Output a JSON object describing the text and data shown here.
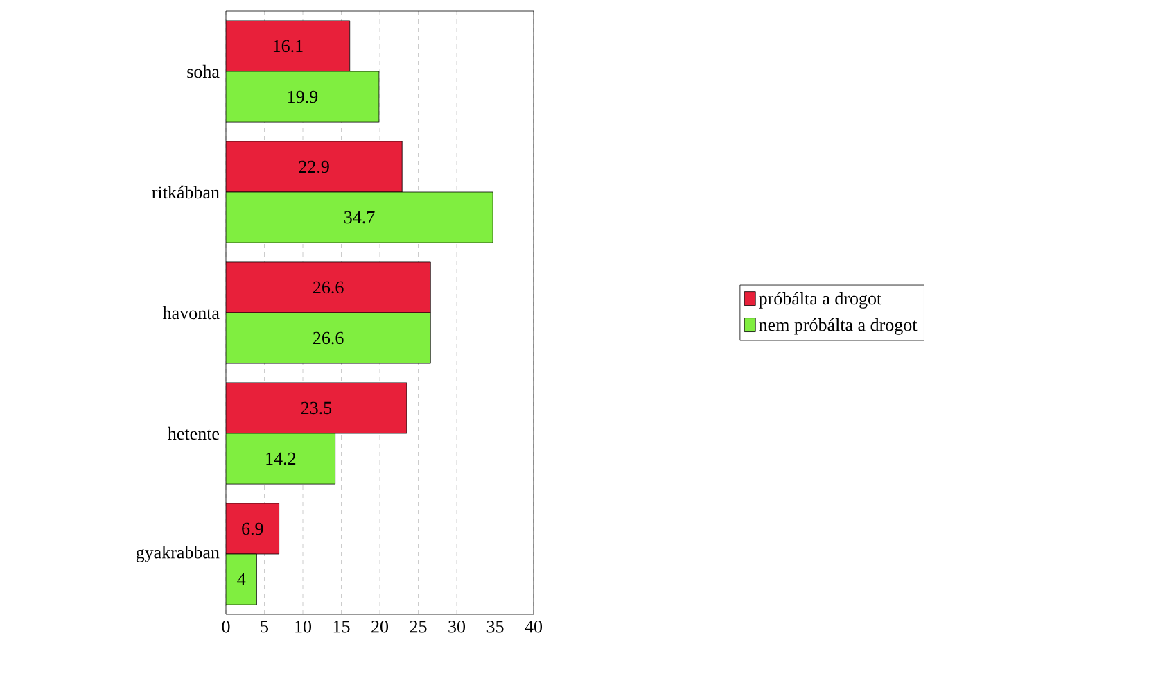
{
  "chart_data": {
    "type": "bar",
    "orientation": "horizontal",
    "categories": [
      "soha",
      "ritkábban",
      "havonta",
      "hetente",
      "gyakrabban"
    ],
    "series": [
      {
        "name": "próbálta a drogot",
        "color": "#e8203a",
        "values": [
          16.1,
          22.9,
          26.6,
          23.5,
          6.9
        ]
      },
      {
        "name": "nem próbálta a drogot",
        "color": "#80ee40",
        "values": [
          19.9,
          34.7,
          26.6,
          14.2,
          4
        ]
      }
    ],
    "xlim": [
      0,
      40
    ],
    "xticks": [
      0,
      5,
      10,
      15,
      20,
      25,
      30,
      35,
      40
    ],
    "grid": "x",
    "legend": "right",
    "data_labels": true
  }
}
